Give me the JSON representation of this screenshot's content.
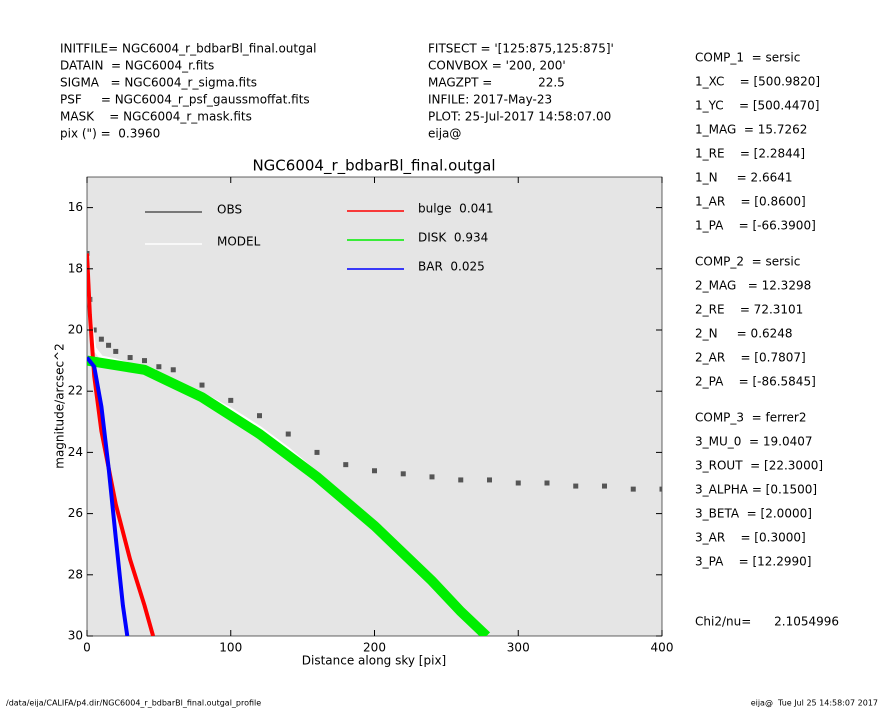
{
  "header": {
    "left": [
      "INITFILE= NGC6004_r_bdbarBl_final.outgal",
      "DATAIN  = NGC6004_r.fits",
      "SIGMA   = NGC6004_r_sigma.fits",
      "PSF     = NGC6004_r_psf_gaussmoffat.fits",
      "MASK    = NGC6004_r_mask.fits",
      "pix (\") =  0.3960"
    ],
    "middle": [
      "FITSECT = '[125:875,125:875]'",
      "CONVBOX = '200, 200'",
      "MAGZPT =            22.5",
      "INFILE: 2017-May-23",
      "PLOT: 25-Jul-2017 14:58:07.00",
      "eija@"
    ]
  },
  "params": [
    [
      "COMP_1  = sersic",
      "1_XC    = [500.9820]",
      "1_YC    = [500.4470]",
      "1_MAG  = 15.7262",
      "1_RE    = [2.2844]",
      "1_N     = 2.6641",
      "1_AR    = [0.8600]",
      "1_PA    = [-66.3900]"
    ],
    [
      "COMP_2  = sersic",
      "2_MAG   = 12.3298",
      "2_RE    = 72.3101",
      "2_N     = 0.6248",
      "2_AR    = [0.7807]",
      "2_PA    = [-86.5845]"
    ],
    [
      "COMP_3  = ferrer2",
      "3_MU_0  = 19.0407",
      "3_ROUT  = [22.3000]",
      "3_ALPHA = [0.1500]",
      "3_BETA  = [2.0000]",
      "3_AR    = [0.3000]",
      "3_PA    = [12.2990]"
    ],
    [
      "Chi2/nu=      2.1054996"
    ]
  ],
  "footer": {
    "left": "/data/eija/CALIFA/p4.dir/NGC6004_r_bdbarBl_final.outgal_profile",
    "right": "eija@  Tue Jul 25 14:58:07 2017"
  },
  "chart_data": {
    "type": "scatter",
    "title": "NGC6004_r_bdbarBl_final.outgal",
    "x_label": "Distance along sky [pix]",
    "y_label": "magnitude/arcsec^2",
    "xlim": [
      0,
      400
    ],
    "xticks": [
      0,
      100,
      200,
      300,
      400
    ],
    "ylim": [
      15,
      30
    ],
    "yticks": [
      16,
      18,
      20,
      22,
      24,
      26,
      28,
      30
    ],
    "y_reversed": true,
    "series": [
      {
        "name": "OBS",
        "color": "#555555",
        "kind": "points",
        "x": [
          0,
          2,
          5,
          10,
          15,
          20,
          30,
          40,
          50,
          60,
          80,
          100,
          120,
          140,
          160,
          180,
          200,
          220,
          240,
          260,
          280,
          300,
          320,
          340,
          360,
          380,
          400
        ],
        "values": [
          17.5,
          19.0,
          20.0,
          20.3,
          20.5,
          20.7,
          20.9,
          21.0,
          21.2,
          21.3,
          21.8,
          22.3,
          22.8,
          23.4,
          24.0,
          24.4,
          24.6,
          24.7,
          24.8,
          24.9,
          24.9,
          25.0,
          25.0,
          25.1,
          25.1,
          25.2,
          25.2
        ]
      },
      {
        "name": "MODEL",
        "color": "#ffffff",
        "kind": "line",
        "x": [
          0,
          2,
          5,
          10,
          20,
          40,
          60,
          80,
          100,
          120,
          140,
          160,
          180,
          200,
          220,
          240,
          260,
          278
        ],
        "values": [
          17.5,
          19.5,
          20.6,
          20.9,
          21.0,
          21.3,
          21.7,
          22.1,
          22.6,
          23.2,
          23.9,
          24.7,
          25.5,
          26.4,
          27.3,
          28.2,
          29.2,
          30
        ]
      },
      {
        "name": "bulge  0.041",
        "color": "#ff0000",
        "kind": "line",
        "x": [
          0,
          2,
          5,
          10,
          20,
          30,
          40,
          46
        ],
        "values": [
          17.5,
          19.5,
          21.5,
          23.3,
          25.7,
          27.5,
          29.0,
          30
        ]
      },
      {
        "name": "DISK  0.934",
        "color": "#00ee00",
        "kind": "line",
        "x": [
          0,
          40,
          80,
          120,
          160,
          200,
          240,
          260,
          278
        ],
        "values": [
          21.0,
          21.3,
          22.2,
          23.4,
          24.8,
          26.4,
          28.2,
          29.2,
          30
        ]
      },
      {
        "name": "BAR  0.025",
        "color": "#0000ff",
        "kind": "line",
        "x": [
          0,
          5,
          10,
          15,
          20,
          25,
          28
        ],
        "values": [
          20.9,
          21.2,
          22.5,
          24.5,
          26.8,
          29.0,
          30
        ]
      }
    ]
  }
}
